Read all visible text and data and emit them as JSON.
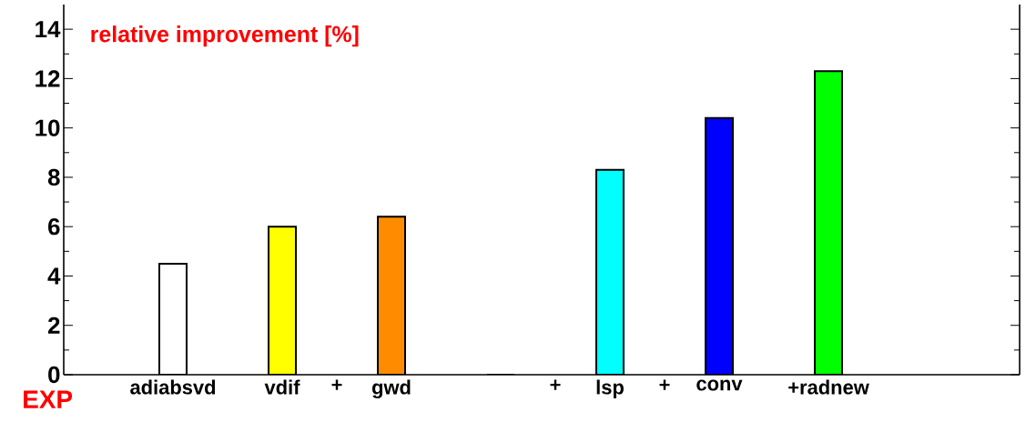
{
  "chart_data": {
    "type": "bar",
    "title": "relative improvement [%]",
    "xlabel": "EXP",
    "categories": [
      "adiabsvd",
      null,
      "vdif",
      "+",
      "gwd",
      null,
      null,
      "+",
      "lsp",
      "+",
      "conv",
      null,
      "+radnew"
    ],
    "values": [
      4.5,
      null,
      6.0,
      null,
      6.4,
      null,
      0,
      null,
      8.3,
      null,
      10.4,
      null,
      12.3
    ],
    "colors": [
      "#ffffff",
      null,
      "#ffff00",
      null,
      "#ff8c00",
      null,
      "#ffffff",
      null,
      "#00ffff",
      null,
      "#0000ff",
      null,
      "#00ff00"
    ],
    "ylim": [
      0,
      15
    ],
    "yticks": [
      0,
      2,
      4,
      6,
      8,
      10,
      12,
      14
    ]
  }
}
